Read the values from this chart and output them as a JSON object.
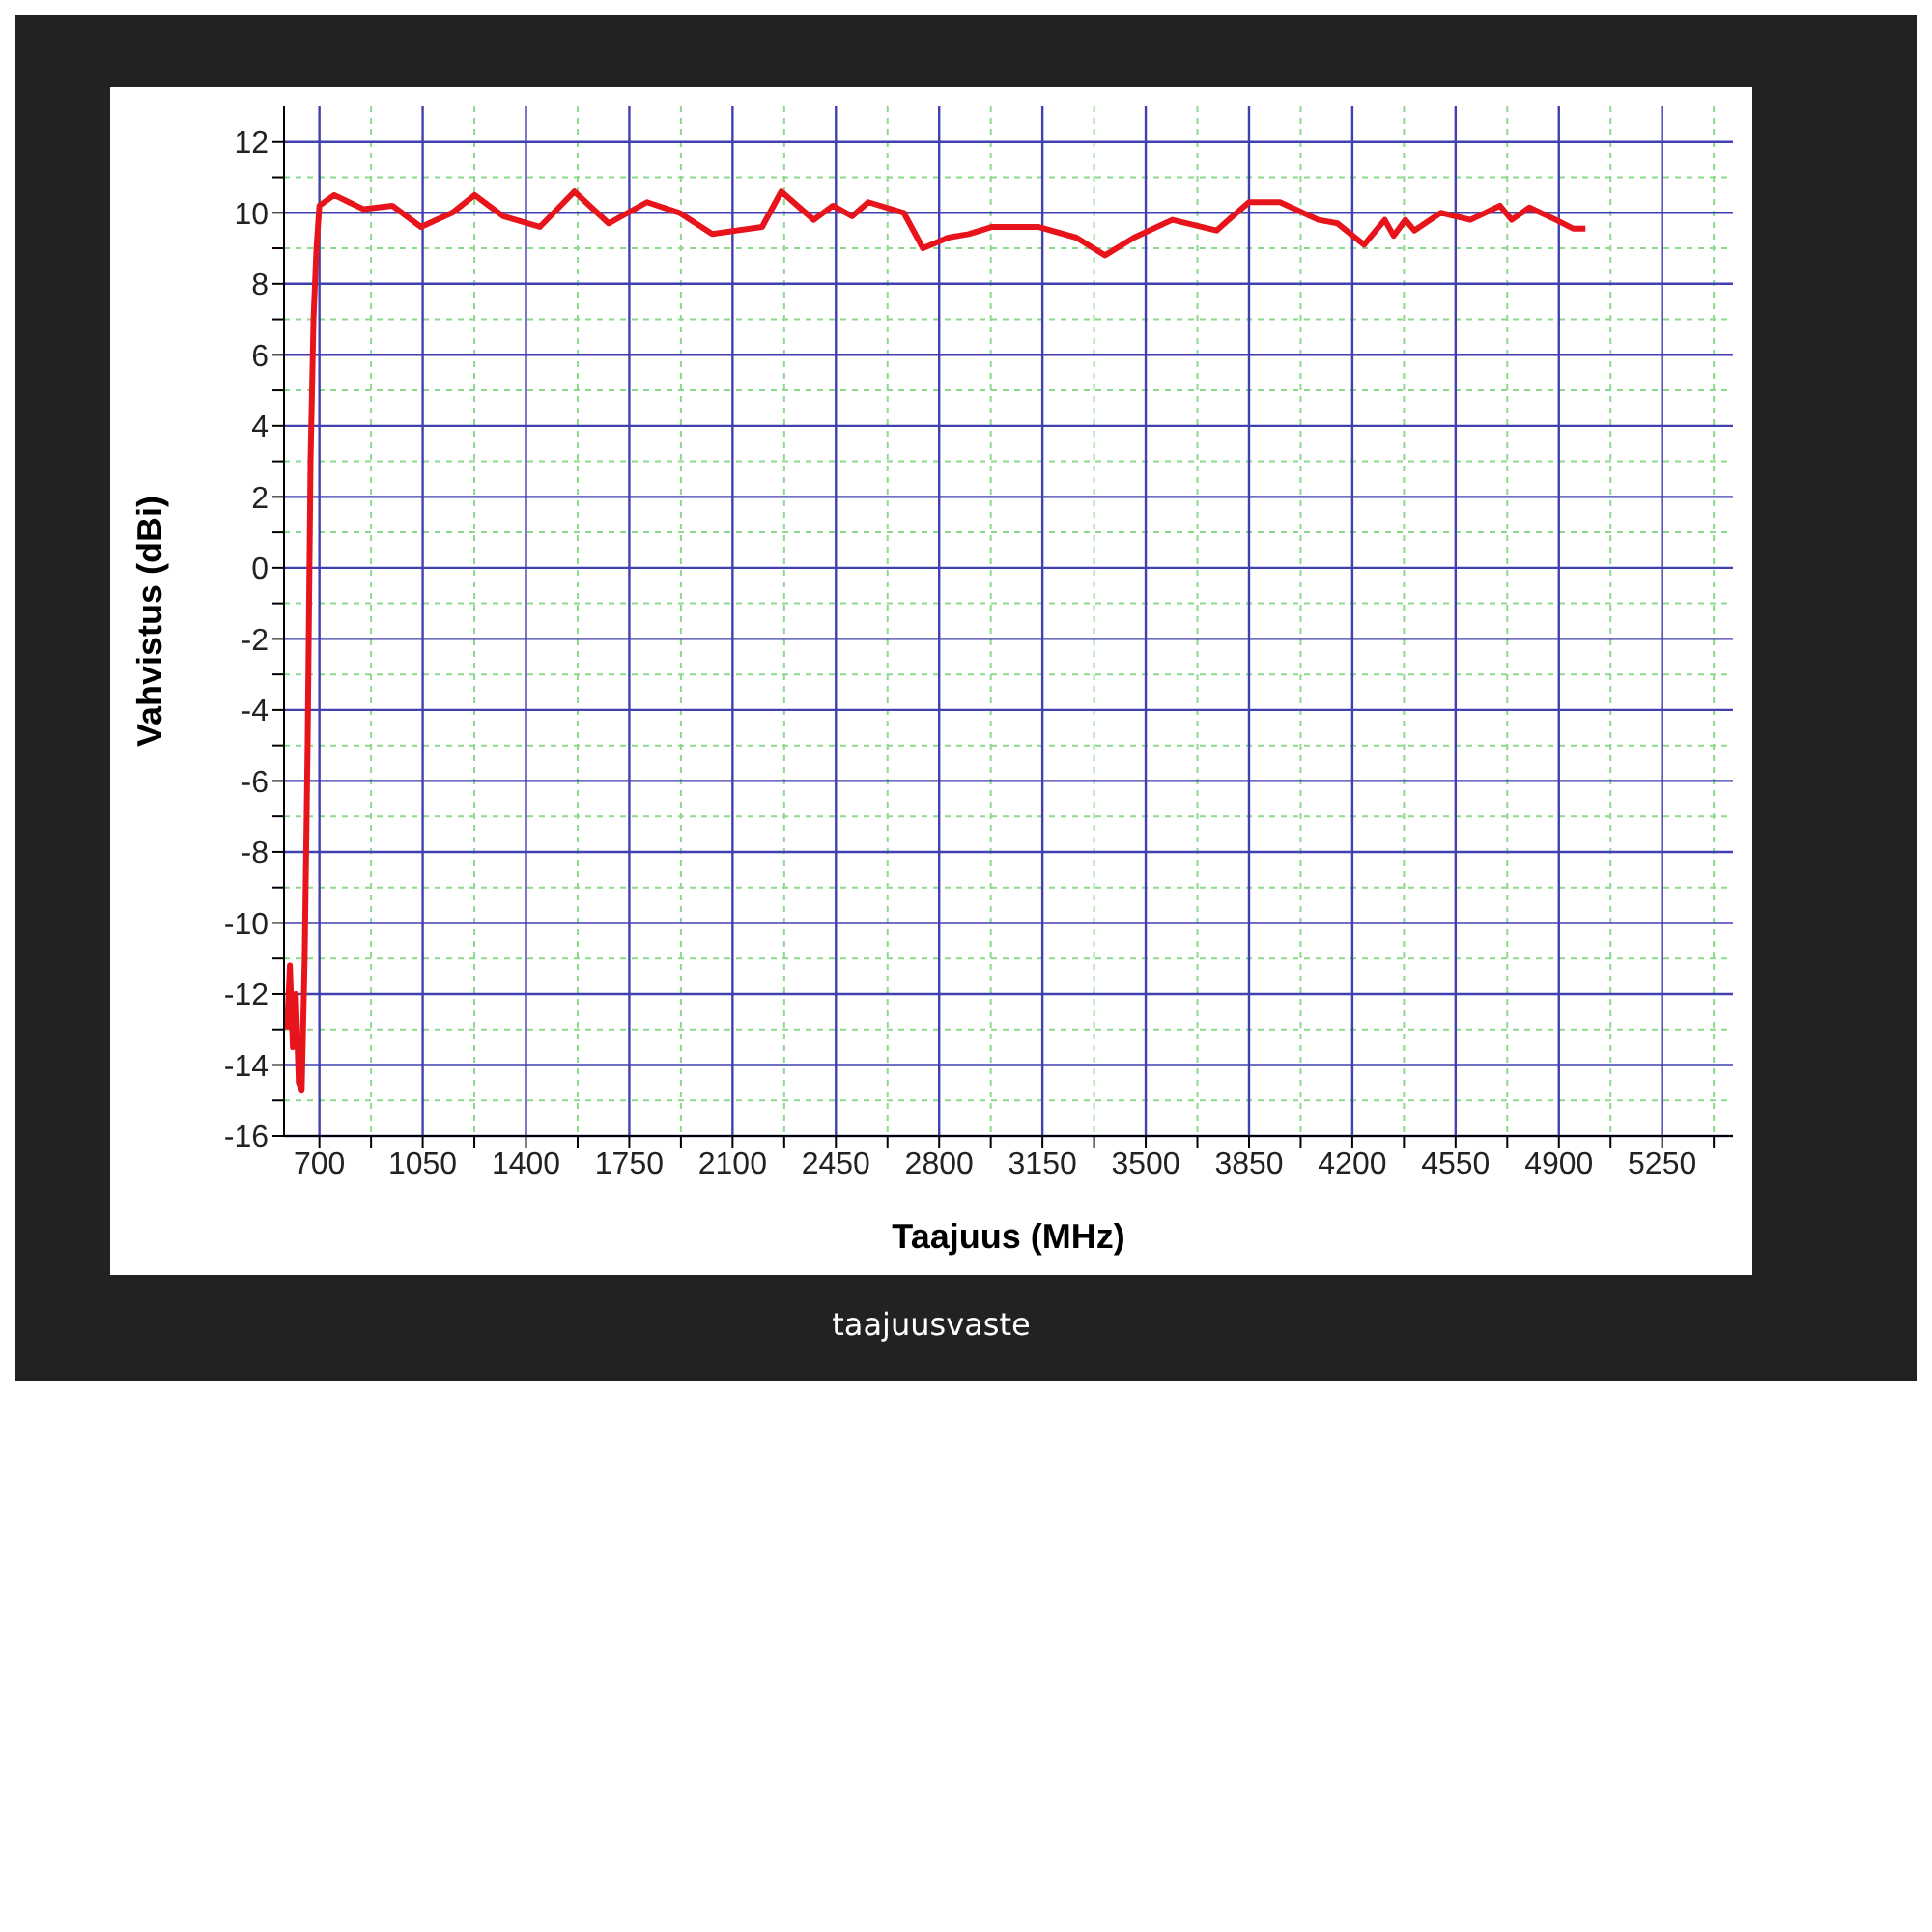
{
  "chart_data": {
    "type": "line",
    "xlabel": "Taajuus (MHz)",
    "ylabel": "Vahvistus (dBi)",
    "annotations": [
      "taajuusvaste"
    ],
    "xlim": [
      580,
      5490
    ],
    "xticks": [
      700,
      {
        "value": 875,
        "label": null
      },
      1050,
      {
        "value": 1225,
        "label": null
      },
      1400,
      {
        "value": 1575,
        "label": null
      },
      1750,
      {
        "value": 1925,
        "label": null
      },
      2100,
      {
        "value": 2275,
        "label": null
      },
      2450,
      {
        "value": 2625,
        "label": null
      },
      2800,
      {
        "value": 2975,
        "label": null
      },
      3150,
      {
        "value": 3325,
        "label": null
      },
      3500,
      {
        "value": 3675,
        "label": null
      },
      3850,
      {
        "value": 4025,
        "label": null
      },
      4200,
      {
        "value": 4375,
        "label": null
      },
      4550,
      {
        "value": 4725,
        "label": null
      },
      4900,
      {
        "value": 5075,
        "label": null
      },
      5250,
      {
        "value": 5425,
        "label": null
      }
    ],
    "ylim": [
      -16,
      13
    ],
    "yticks": [
      -16,
      {
        "value": -15,
        "label": null
      },
      -14,
      {
        "value": -13,
        "label": null
      },
      -12,
      {
        "value": -11,
        "label": null
      },
      -10,
      {
        "value": -9,
        "label": null
      },
      -8,
      {
        "value": -7,
        "label": null
      },
      -6,
      {
        "value": -5,
        "label": null
      },
      -4,
      {
        "value": -3,
        "label": null
      },
      -2,
      {
        "value": -1,
        "label": null
      },
      0,
      {
        "value": 1,
        "label": null
      },
      2,
      {
        "value": 3,
        "label": null
      },
      4,
      {
        "value": 5,
        "label": null
      },
      6,
      {
        "value": 7,
        "label": null
      },
      8,
      {
        "value": 9,
        "label": null
      },
      10,
      {
        "value": 11,
        "label": null
      },
      12
    ],
    "grid": true,
    "legend": false,
    "marker": "none",
    "line_style": "solid",
    "series": [
      {
        "color": "#e8141c",
        "x": [
          590,
          600,
          610,
          620,
          630,
          640,
          650,
          660,
          670,
          680,
          690,
          700,
          750,
          800,
          850,
          947,
          1044,
          1150,
          1226,
          1323,
          1447,
          1564,
          1680,
          1810,
          1920,
          2031,
          2200,
          2265,
          2375,
          2440,
          2505,
          2560,
          2680,
          2745,
          2830,
          2900,
          2980,
          3135,
          3265,
          3362,
          3460,
          3590,
          3740,
          3850,
          3955,
          4085,
          4150,
          4240,
          4310,
          4340,
          4380,
          4410,
          4500,
          4600,
          4700,
          4740,
          4800,
          4890,
          4950,
          4990
        ],
        "values": [
          -13,
          -11.2,
          -13.5,
          -12,
          -14.5,
          -14.7,
          -11,
          -5,
          3,
          7,
          9,
          10.2,
          10.5,
          10.3,
          10.1,
          10.2,
          9.6,
          10.0,
          10.5,
          9.9,
          9.6,
          10.6,
          9.7,
          10.3,
          10.0,
          9.4,
          9.6,
          10.6,
          9.8,
          10.2,
          9.9,
          10.3,
          10.0,
          9.0,
          9.3,
          9.4,
          9.6,
          9.6,
          9.3,
          8.8,
          9.3,
          9.8,
          9.5,
          10.3,
          10.3,
          9.8,
          9.7,
          9.1,
          9.8,
          9.35,
          9.8,
          9.5,
          10.0,
          9.8,
          10.2,
          9.8,
          10.15,
          9.8,
          9.55,
          9.55
        ]
      }
    ]
  }
}
